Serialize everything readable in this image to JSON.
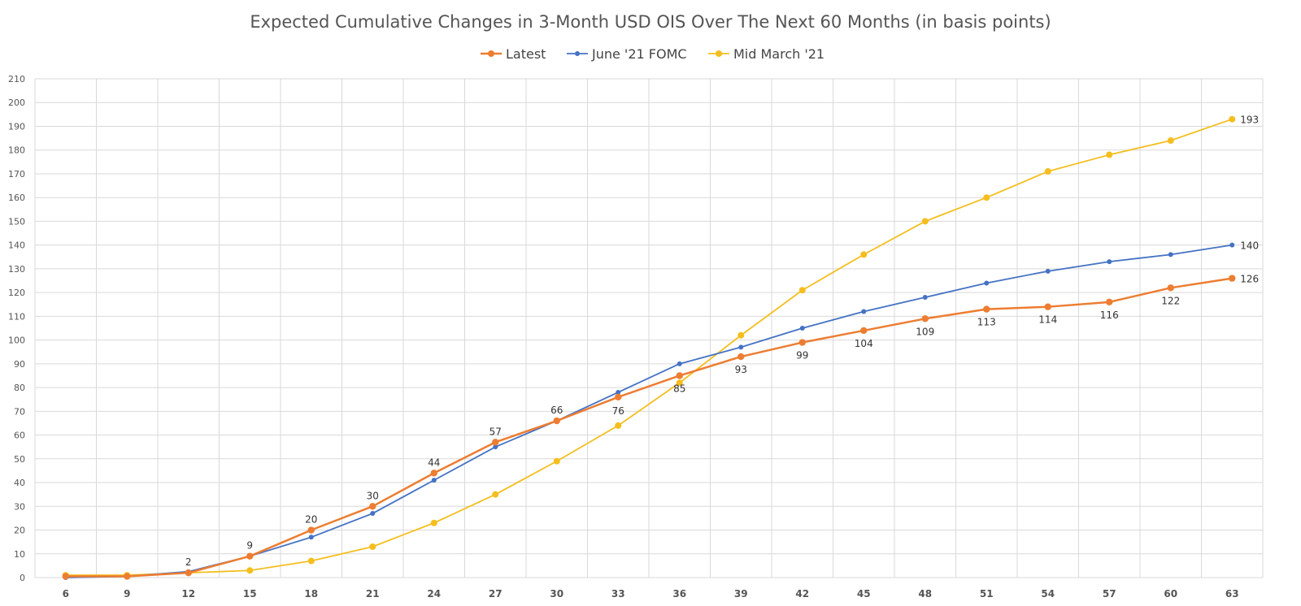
{
  "chart_data": {
    "type": "line",
    "title": "Expected Cumulative Changes in 3-Month USD OIS Over The Next 60 Months (in basis points)",
    "xlabel": "",
    "ylabel": "",
    "x": [
      6,
      9,
      12,
      15,
      18,
      21,
      24,
      27,
      30,
      33,
      36,
      39,
      42,
      45,
      48,
      51,
      54,
      57,
      60,
      63
    ],
    "x_labels": [
      "6",
      "9",
      "12",
      "15",
      "18",
      "21",
      "24",
      "27",
      "30",
      "33",
      "36",
      "39",
      "42",
      "45",
      "48",
      "51",
      "54",
      "57",
      "60",
      "63"
    ],
    "ylim": [
      0,
      210
    ],
    "yticks": [
      0,
      10,
      20,
      30,
      40,
      50,
      60,
      70,
      80,
      90,
      100,
      110,
      120,
      130,
      140,
      150,
      160,
      170,
      180,
      190,
      200,
      210
    ],
    "grid": true,
    "legend_position": "top",
    "series": [
      {
        "name": "Latest",
        "color": "#ED7D31",
        "values": [
          0.5,
          0.5,
          2,
          9,
          20,
          30,
          44,
          57,
          66,
          76,
          85,
          93,
          99,
          104,
          109,
          113,
          114,
          116,
          122,
          126
        ],
        "labels": [
          "",
          "",
          "2",
          "9",
          "20",
          "30",
          "44",
          "57",
          "66",
          "76",
          "85",
          "93",
          "99",
          "104",
          "109",
          "113",
          "114",
          "116",
          "122",
          "126"
        ]
      },
      {
        "name": "June '21 FOMC",
        "color": "#4472C4",
        "values": [
          0,
          0.5,
          2.5,
          9,
          17,
          27,
          41,
          55,
          66,
          78,
          90,
          97,
          105,
          112,
          118,
          124,
          129,
          133,
          136,
          140
        ],
        "labels": [
          "",
          "",
          "",
          "",
          "",
          "",
          "",
          "",
          "",
          "",
          "",
          "",
          "",
          "",
          "",
          "",
          "",
          "",
          "",
          "140"
        ]
      },
      {
        "name": "Mid March '21",
        "color": "#F5BE1E",
        "values": [
          1,
          1,
          2,
          3,
          7,
          13,
          23,
          35,
          49,
          64,
          82,
          102,
          121,
          136,
          150,
          160,
          171,
          178,
          184,
          193
        ],
        "labels": [
          "",
          "",
          "",
          "",
          "",
          "",
          "",
          "",
          "",
          "",
          "",
          "",
          "",
          "",
          "",
          "",
          "",
          "",
          "",
          "193"
        ]
      }
    ]
  }
}
